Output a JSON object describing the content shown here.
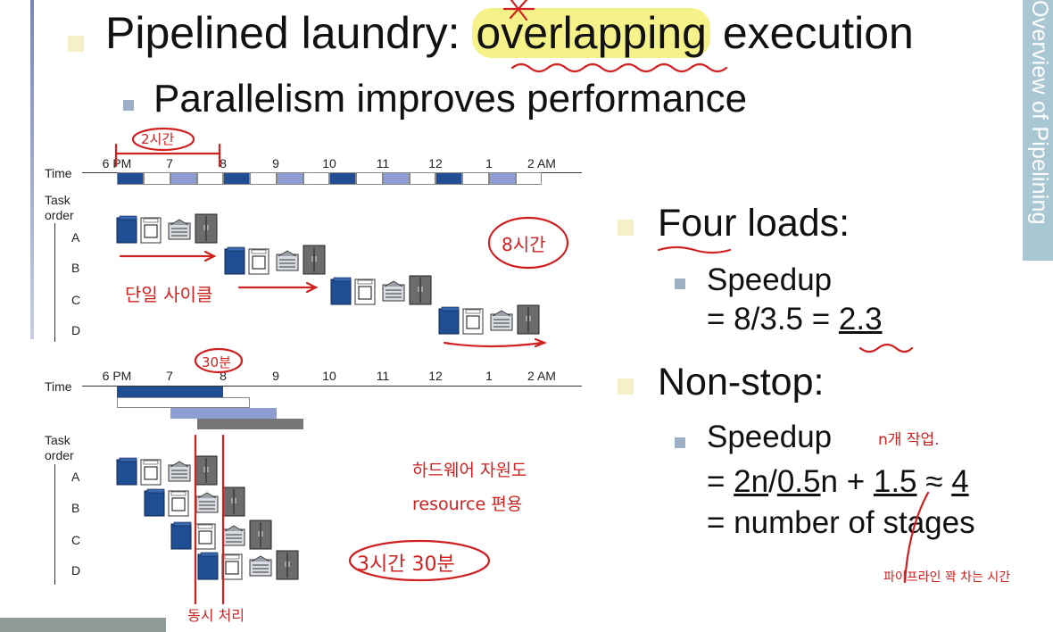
{
  "slide": {
    "title_prefix": "Pipelined laundry: ",
    "title_highlight": "overlapping",
    "title_suffix": " execution",
    "subtitle": "Parallelism improves performance",
    "side_tab": "Overview of Pipelining"
  },
  "right": {
    "four_loads": "Four loads:",
    "speedup_label": "Speedup",
    "speedup_eq_prefix": "= 8/3.5 = ",
    "speedup_value": "2.3",
    "non_stop": "Non-stop:",
    "speedup2_label": "Speedup",
    "eq_a": "= ",
    "eq_2n": "2n",
    "eq_slash": "/",
    "eq_05n": "0.5",
    "eq_n": "n + ",
    "eq_15": "1.5",
    "eq_approx": " ≈ ",
    "eq_4": "4",
    "stages": "= number of stages"
  },
  "diagram": {
    "time_label": "Time",
    "task_order": [
      "Task",
      "order"
    ],
    "ticks": [
      "6 PM",
      "7",
      "8",
      "9",
      "10",
      "11",
      "12",
      "1",
      "2 AM"
    ],
    "tasks": [
      "A",
      "B",
      "C",
      "D"
    ]
  },
  "annotations": {
    "two_hours": "2시간",
    "eight_hours": "8시간",
    "single_cycle": "단일 사이클",
    "thirty_min": "30분",
    "n_tasks": "n개 작업.",
    "one_resource": "하드웨어 자원도",
    "resource": "resource 편용",
    "three_half": "3시간 30분",
    "pipeline_full": "파이프라인 꽉 차는 시간",
    "concurrent": "동시 처리"
  },
  "colors": {
    "dark_blue": "#1f4e94",
    "light_blue": "#8e9ed4",
    "gray": "#777777",
    "red": "#d02020",
    "highlight": "#f6f28a"
  }
}
